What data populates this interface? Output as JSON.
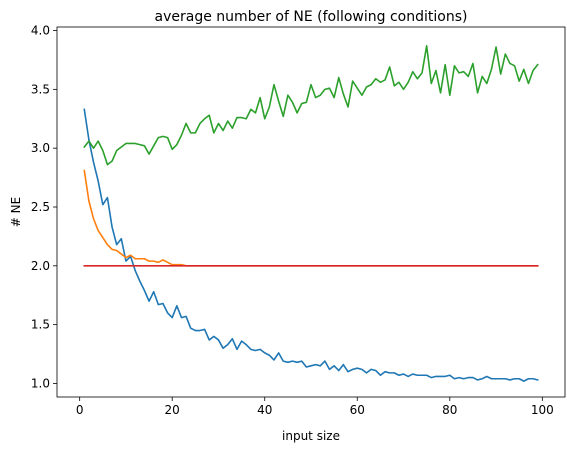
{
  "chart_data": {
    "type": "line",
    "title": "average number of NE (following conditions)",
    "xlabel": "input size",
    "ylabel": "# NE",
    "xlim": [
      -4.9,
      104.9
    ],
    "ylim": [
      0.885,
      4.03
    ],
    "xticks": [
      0,
      20,
      40,
      60,
      80,
      100
    ],
    "yticks": [
      1.0,
      1.5,
      2.0,
      2.5,
      3.0,
      3.5,
      4.0
    ],
    "ytick_labels": [
      "1.0",
      "1.5",
      "2.0",
      "2.5",
      "3.0",
      "3.5",
      "4.0"
    ],
    "grid": false,
    "legend": "none",
    "series": [
      {
        "color": "#1f77b4",
        "x": [
          1,
          2,
          3,
          4,
          5,
          6,
          7,
          8,
          9,
          10,
          11,
          12,
          13,
          14,
          15,
          16,
          17,
          18,
          19,
          20,
          21,
          22,
          23,
          24,
          25,
          26,
          27,
          28,
          29,
          30,
          31,
          32,
          33,
          34,
          35,
          36,
          37,
          38,
          39,
          40,
          41,
          42,
          43,
          44,
          45,
          46,
          47,
          48,
          49,
          50,
          51,
          52,
          53,
          54,
          55,
          56,
          57,
          58,
          59,
          60,
          61,
          62,
          63,
          64,
          65,
          66,
          67,
          68,
          69,
          70,
          71,
          72,
          73,
          74,
          75,
          76,
          77,
          78,
          79,
          80,
          81,
          82,
          83,
          84,
          85,
          86,
          87,
          88,
          89,
          90,
          91,
          92,
          93,
          94,
          95,
          96,
          97,
          98,
          99
        ],
        "y": [
          3.33,
          3.07,
          2.88,
          2.72,
          2.52,
          2.58,
          2.33,
          2.18,
          2.23,
          2.04,
          2.08,
          1.96,
          1.87,
          1.79,
          1.7,
          1.78,
          1.67,
          1.68,
          1.6,
          1.56,
          1.66,
          1.56,
          1.57,
          1.47,
          1.45,
          1.45,
          1.46,
          1.37,
          1.4,
          1.37,
          1.3,
          1.33,
          1.38,
          1.29,
          1.36,
          1.33,
          1.29,
          1.28,
          1.29,
          1.26,
          1.24,
          1.2,
          1.26,
          1.19,
          1.18,
          1.19,
          1.18,
          1.19,
          1.14,
          1.15,
          1.16,
          1.15,
          1.19,
          1.12,
          1.15,
          1.11,
          1.16,
          1.1,
          1.12,
          1.13,
          1.12,
          1.09,
          1.12,
          1.11,
          1.07,
          1.1,
          1.09,
          1.09,
          1.07,
          1.08,
          1.06,
          1.08,
          1.07,
          1.07,
          1.07,
          1.05,
          1.06,
          1.06,
          1.06,
          1.07,
          1.04,
          1.05,
          1.04,
          1.05,
          1.05,
          1.03,
          1.04,
          1.06,
          1.04,
          1.04,
          1.04,
          1.04,
          1.03,
          1.04,
          1.04,
          1.02,
          1.04,
          1.04,
          1.03
        ]
      },
      {
        "color": "#ff7f0e",
        "x": [
          1,
          2,
          3,
          4,
          5,
          6,
          7,
          8,
          9,
          10,
          11,
          12,
          13,
          14,
          15,
          16,
          17,
          18,
          19,
          20,
          21,
          22,
          23,
          24,
          25,
          26,
          27,
          28,
          29,
          30,
          31,
          32,
          33,
          34,
          35,
          36,
          37,
          38,
          39,
          40,
          41,
          42,
          43,
          44,
          45,
          46,
          47,
          48,
          49,
          50,
          51,
          52,
          53,
          54,
          55,
          56,
          57,
          58,
          59,
          60,
          61,
          62,
          63,
          64,
          65,
          66,
          67,
          68,
          69,
          70,
          71,
          72,
          73,
          74,
          75,
          76,
          77,
          78,
          79,
          80,
          81,
          82,
          83,
          84,
          85,
          86,
          87,
          88,
          89,
          90,
          91,
          92,
          93,
          94,
          95,
          96,
          97,
          98,
          99
        ],
        "y": [
          2.81,
          2.55,
          2.4,
          2.3,
          2.24,
          2.18,
          2.14,
          2.13,
          2.1,
          2.07,
          2.09,
          2.06,
          2.06,
          2.06,
          2.04,
          2.04,
          2.03,
          2.05,
          2.03,
          2.01,
          2.01,
          2.01,
          2.0,
          2.0,
          2.0,
          2.0,
          2.0,
          2.0,
          2.0,
          2.0,
          2.0,
          2.0,
          2.0,
          2.0,
          2.0,
          2.0,
          2.0,
          2.0,
          2.0,
          2.0,
          2.0,
          2.0,
          2.0,
          2.0,
          2.0,
          2.0,
          2.0,
          2.0,
          2.0,
          2.0,
          2.0,
          2.0,
          2.0,
          2.0,
          2.0,
          2.0,
          2.0,
          2.0,
          2.0,
          2.0,
          2.0,
          2.0,
          2.0,
          2.0,
          2.0,
          2.0,
          2.0,
          2.0,
          2.0,
          2.0,
          2.0,
          2.0,
          2.0,
          2.0,
          2.0,
          2.0,
          2.0,
          2.0,
          2.0,
          2.0,
          2.0,
          2.0,
          2.0,
          2.0,
          2.0,
          2.0,
          2.0,
          2.0,
          2.0,
          2.0,
          2.0,
          2.0,
          2.0,
          2.0,
          2.0,
          2.0,
          2.0,
          2.0,
          2.0
        ]
      },
      {
        "color": "#2ca02c",
        "x": [
          1,
          2,
          3,
          4,
          5,
          6,
          7,
          8,
          9,
          10,
          11,
          12,
          13,
          14,
          15,
          16,
          17,
          18,
          19,
          20,
          21,
          22,
          23,
          24,
          25,
          26,
          27,
          28,
          29,
          30,
          31,
          32,
          33,
          34,
          35,
          36,
          37,
          38,
          39,
          40,
          41,
          42,
          43,
          44,
          45,
          46,
          47,
          48,
          49,
          50,
          51,
          52,
          53,
          54,
          55,
          56,
          57,
          58,
          59,
          60,
          61,
          62,
          63,
          64,
          65,
          66,
          67,
          68,
          69,
          70,
          71,
          72,
          73,
          74,
          75,
          76,
          77,
          78,
          79,
          80,
          81,
          82,
          83,
          84,
          85,
          86,
          87,
          88,
          89,
          90,
          91,
          92,
          93,
          94,
          95,
          96,
          97,
          98,
          99
        ],
        "y": [
          3.01,
          3.06,
          3.0,
          3.06,
          2.98,
          2.86,
          2.89,
          2.98,
          3.01,
          3.04,
          3.04,
          3.04,
          3.03,
          3.02,
          2.95,
          3.02,
          3.09,
          3.1,
          3.09,
          2.99,
          3.03,
          3.11,
          3.21,
          3.13,
          3.13,
          3.21,
          3.25,
          3.28,
          3.13,
          3.21,
          3.15,
          3.23,
          3.17,
          3.26,
          3.26,
          3.25,
          3.33,
          3.3,
          3.43,
          3.25,
          3.35,
          3.54,
          3.4,
          3.27,
          3.45,
          3.39,
          3.3,
          3.38,
          3.39,
          3.54,
          3.43,
          3.45,
          3.5,
          3.51,
          3.43,
          3.6,
          3.46,
          3.35,
          3.57,
          3.51,
          3.45,
          3.52,
          3.54,
          3.59,
          3.56,
          3.58,
          3.69,
          3.53,
          3.56,
          3.5,
          3.56,
          3.65,
          3.59,
          3.64,
          3.87,
          3.55,
          3.66,
          3.47,
          3.71,
          3.45,
          3.7,
          3.64,
          3.65,
          3.61,
          3.72,
          3.47,
          3.61,
          3.55,
          3.67,
          3.86,
          3.63,
          3.8,
          3.72,
          3.7,
          3.57,
          3.67,
          3.55,
          3.66,
          3.71
        ]
      },
      {
        "color": "#d62728",
        "x": [
          1,
          2,
          3,
          4,
          5,
          6,
          7,
          8,
          9,
          10,
          11,
          12,
          13,
          14,
          15,
          16,
          17,
          18,
          19,
          20,
          21,
          22,
          23,
          24,
          25,
          26,
          27,
          28,
          29,
          30,
          31,
          32,
          33,
          34,
          35,
          36,
          37,
          38,
          39,
          40,
          41,
          42,
          43,
          44,
          45,
          46,
          47,
          48,
          49,
          50,
          51,
          52,
          53,
          54,
          55,
          56,
          57,
          58,
          59,
          60,
          61,
          62,
          63,
          64,
          65,
          66,
          67,
          68,
          69,
          70,
          71,
          72,
          73,
          74,
          75,
          76,
          77,
          78,
          79,
          80,
          81,
          82,
          83,
          84,
          85,
          86,
          87,
          88,
          89,
          90,
          91,
          92,
          93,
          94,
          95,
          96,
          97,
          98,
          99
        ],
        "y": [
          2.0,
          2.0,
          2.0,
          2.0,
          2.0,
          2.0,
          2.0,
          2.0,
          2.0,
          2.0,
          2.0,
          2.0,
          2.0,
          2.0,
          2.0,
          2.0,
          2.0,
          2.0,
          2.0,
          2.0,
          2.0,
          2.0,
          2.0,
          2.0,
          2.0,
          2.0,
          2.0,
          2.0,
          2.0,
          2.0,
          2.0,
          2.0,
          2.0,
          2.0,
          2.0,
          2.0,
          2.0,
          2.0,
          2.0,
          2.0,
          2.0,
          2.0,
          2.0,
          2.0,
          2.0,
          2.0,
          2.0,
          2.0,
          2.0,
          2.0,
          2.0,
          2.0,
          2.0,
          2.0,
          2.0,
          2.0,
          2.0,
          2.0,
          2.0,
          2.0,
          2.0,
          2.0,
          2.0,
          2.0,
          2.0,
          2.0,
          2.0,
          2.0,
          2.0,
          2.0,
          2.0,
          2.0,
          2.0,
          2.0,
          2.0,
          2.0,
          2.0,
          2.0,
          2.0,
          2.0,
          2.0,
          2.0,
          2.0,
          2.0,
          2.0,
          2.0,
          2.0,
          2.0,
          2.0,
          2.0,
          2.0,
          2.0,
          2.0,
          2.0,
          2.0,
          2.0,
          2.0,
          2.0,
          2.0
        ]
      }
    ]
  }
}
